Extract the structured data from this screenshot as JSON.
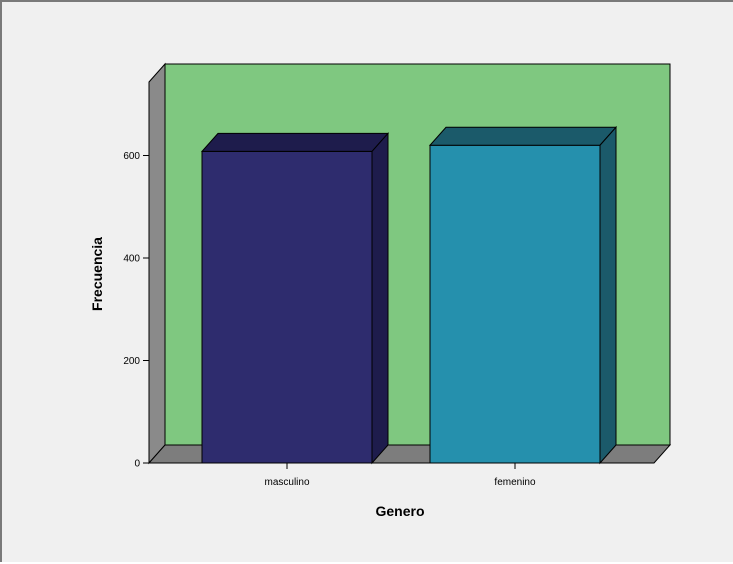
{
  "chart_data": {
    "type": "bar",
    "style": "3d",
    "categories": [
      "masculino",
      "femenino"
    ],
    "values": [
      608,
      620
    ],
    "xlabel": "Genero",
    "ylabel": "Frecuencia",
    "ylim": [
      0,
      600
    ],
    "yticks": [
      0,
      200,
      400,
      600
    ],
    "grid": false,
    "legend": "none",
    "colors": {
      "wall": "#7fc880",
      "side_wall": "#8a8a8a",
      "floor": "#7d7d7d",
      "bars": [
        "#2e2c6e",
        "#2590ad"
      ],
      "bars_dark": [
        "#1e1c4c",
        "#1b5a6a"
      ]
    }
  }
}
